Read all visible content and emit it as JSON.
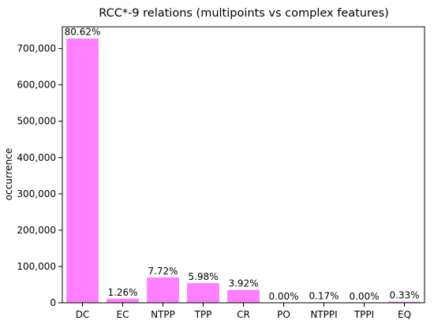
{
  "chart_data": {
    "type": "bar",
    "title": "RCC*-9 relations (multipoints vs complex features)",
    "xlabel": "",
    "ylabel": "occurrence",
    "categories": [
      "DC",
      "EC",
      "NTPP",
      "TPP",
      "CR",
      "PO",
      "NTPPI",
      "TPPI",
      "EQ"
    ],
    "values": [
      728000,
      11400,
      69700,
      54000,
      35400,
      0,
      1500,
      0,
      3000
    ],
    "data_labels": [
      "80.62%",
      "1.26%",
      "7.72%",
      "5.98%",
      "3.92%",
      "0.00%",
      "0.17%",
      "0.00%",
      "0.33%"
    ],
    "ylim": [
      0,
      760000
    ],
    "yticks": [
      0,
      100000,
      200000,
      300000,
      400000,
      500000,
      600000,
      700000
    ],
    "ytick_labels": [
      "0",
      "100,000",
      "200,000",
      "300,000",
      "400,000",
      "500,000",
      "600,000",
      "700,000"
    ],
    "bar_color": "#ff80ff",
    "grid": false,
    "legend": "none"
  }
}
